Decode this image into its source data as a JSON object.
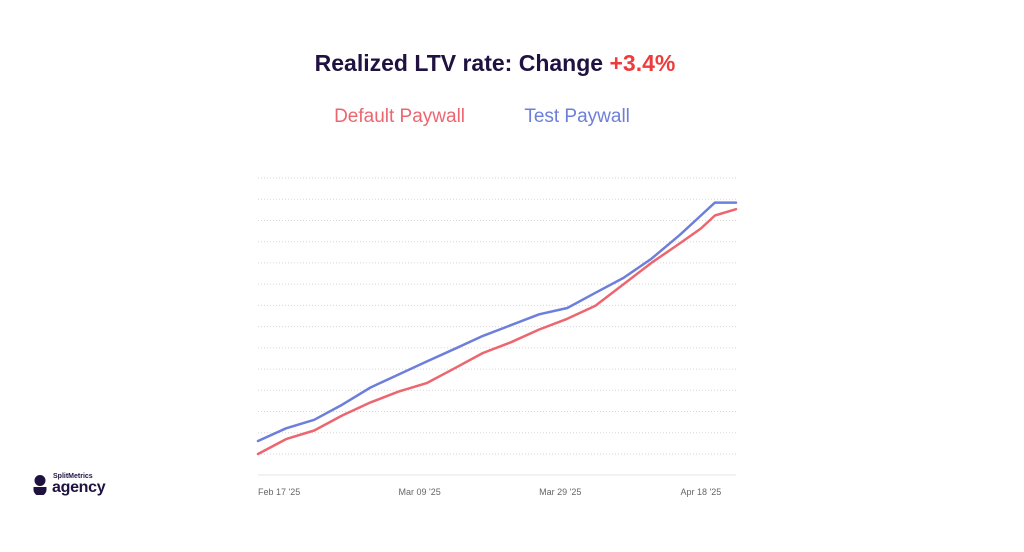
{
  "header": {
    "title_prefix": "Realized LTV rate: Change ",
    "title_change": "+3.4%"
  },
  "logo": {
    "small_text": "SplitMetrics",
    "big_text": "agency"
  },
  "colors": {
    "title": "#1f1240",
    "change": "#ef3b3b",
    "default": "#ec6670",
    "test": "#6d7fdb",
    "grid": "#d6d6d6",
    "tick": "#666666"
  },
  "chart_data": {
    "type": "line",
    "title": "Realized LTV rate: Change +3.4%",
    "xlabel": "",
    "ylabel": "",
    "x_ticks": [
      "Feb 17 '25",
      "Mar 09 '25",
      "Mar 29 '25",
      "Apr 18 '25"
    ],
    "x_start": "2025-02-14",
    "x_end": "2025-04-23",
    "ylim": [
      0,
      100
    ],
    "y_tick_labels_visible": false,
    "grid": "horizontal dotted",
    "legend_position": "top",
    "series": [
      {
        "name": "Default Paywall",
        "color": "#ec6670",
        "points": [
          [
            "2025-02-14",
            0.0
          ],
          [
            "2025-02-18",
            5.4
          ],
          [
            "2025-02-22",
            8.5
          ],
          [
            "2025-02-26",
            14.0
          ],
          [
            "2025-03-02",
            18.7
          ],
          [
            "2025-03-06",
            22.6
          ],
          [
            "2025-03-10",
            25.7
          ],
          [
            "2025-03-14",
            31.1
          ],
          [
            "2025-03-18",
            36.6
          ],
          [
            "2025-03-22",
            40.5
          ],
          [
            "2025-03-26",
            45.1
          ],
          [
            "2025-03-30",
            49.0
          ],
          [
            "2025-04-03",
            53.7
          ],
          [
            "2025-04-07",
            61.5
          ],
          [
            "2025-04-11",
            69.3
          ],
          [
            "2025-04-15",
            76.3
          ],
          [
            "2025-04-18",
            81.7
          ],
          [
            "2025-04-20",
            86.4
          ],
          [
            "2025-04-23",
            88.7
          ]
        ]
      },
      {
        "name": "Test Paywall",
        "color": "#6d7fdb",
        "points": [
          [
            "2025-02-14",
            4.7
          ],
          [
            "2025-02-18",
            9.3
          ],
          [
            "2025-02-22",
            12.4
          ],
          [
            "2025-02-26",
            17.9
          ],
          [
            "2025-03-02",
            24.1
          ],
          [
            "2025-03-06",
            28.8
          ],
          [
            "2025-03-10",
            33.5
          ],
          [
            "2025-03-14",
            38.1
          ],
          [
            "2025-03-18",
            42.8
          ],
          [
            "2025-03-22",
            46.7
          ],
          [
            "2025-03-26",
            50.6
          ],
          [
            "2025-03-30",
            52.9
          ],
          [
            "2025-04-03",
            58.4
          ],
          [
            "2025-04-07",
            63.8
          ],
          [
            "2025-04-11",
            70.8
          ],
          [
            "2025-04-15",
            79.4
          ],
          [
            "2025-04-18",
            86.4
          ],
          [
            "2025-04-20",
            91.1
          ],
          [
            "2025-04-23",
            91.1
          ]
        ]
      }
    ]
  }
}
